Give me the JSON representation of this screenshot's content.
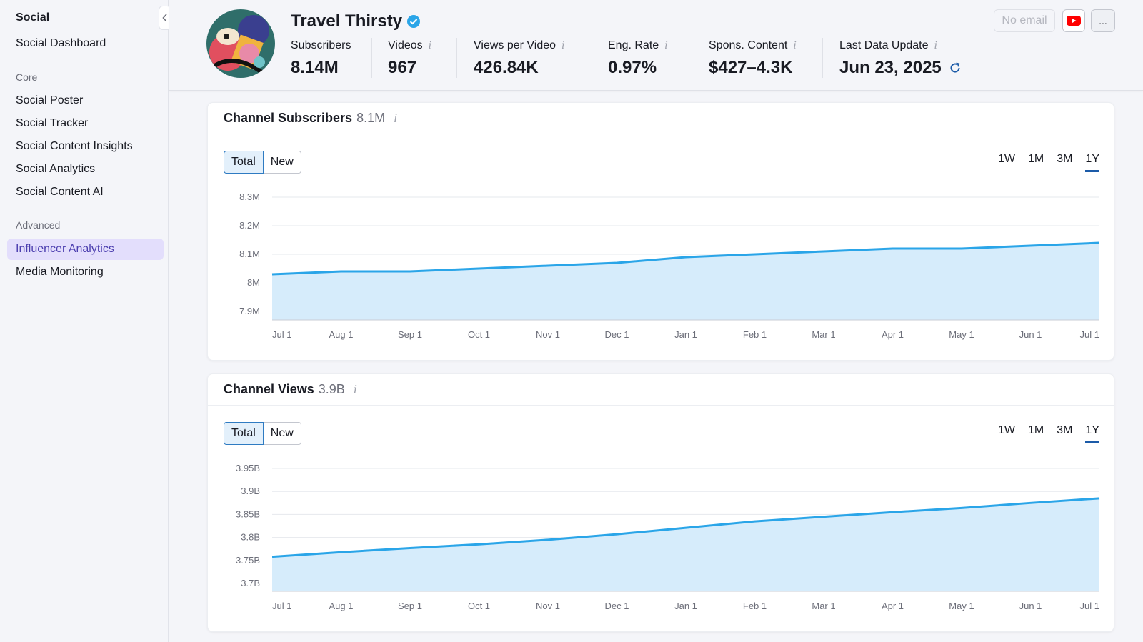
{
  "sidebar": {
    "title": "Social",
    "top_item": "Social Dashboard",
    "core_label": "Core",
    "core_items": [
      "Social Poster",
      "Social Tracker",
      "Social Content Insights",
      "Social Analytics",
      "Social Content AI"
    ],
    "advanced_label": "Advanced",
    "advanced_items": [
      "Influencer Analytics",
      "Media Monitoring"
    ],
    "active_item": "Influencer Analytics"
  },
  "header": {
    "channel_name": "Travel Thirsty",
    "no_email_label": "No email",
    "more_label": "...",
    "stats": [
      {
        "label": "Subscribers",
        "value": "8.14M",
        "info": false
      },
      {
        "label": "Videos",
        "value": "967",
        "info": true
      },
      {
        "label": "Views per Video",
        "value": "426.84K",
        "info": true
      },
      {
        "label": "Eng. Rate",
        "value": "0.97%",
        "info": true
      },
      {
        "label": "Spons. Content",
        "value": "$427–4.3K",
        "info": true
      },
      {
        "label": "Last Data Update",
        "value": "Jun 23, 2025",
        "info": true
      }
    ]
  },
  "colors": {
    "accent": "#2aa5e8",
    "fill": "#d6ecfb",
    "active_sidebar": "#e3defc",
    "youtube": "#ff0000"
  },
  "subscribers_card": {
    "title": "Channel Subscribers",
    "value": "8.1M",
    "seg": [
      "Total",
      "New"
    ],
    "ranges": [
      "1W",
      "1M",
      "3M",
      "1Y"
    ],
    "active_range": "1Y"
  },
  "views_card": {
    "title": "Channel Views",
    "value": "3.9B",
    "seg": [
      "Total",
      "New"
    ],
    "ranges": [
      "1W",
      "1M",
      "3M",
      "1Y"
    ],
    "active_range": "1Y"
  },
  "chart_data": [
    {
      "type": "area",
      "title": "Channel Subscribers",
      "x": [
        "Jul 1",
        "Aug 1",
        "Sep 1",
        "Oct 1",
        "Nov 1",
        "Dec 1",
        "Jan 1",
        "Feb 1",
        "Mar 1",
        "Apr 1",
        "May 1",
        "Jun 1",
        "Jul 1"
      ],
      "values": [
        8.03,
        8.04,
        8.04,
        8.05,
        8.06,
        8.07,
        8.09,
        8.1,
        8.11,
        8.12,
        8.12,
        8.13,
        8.14
      ],
      "yticks": [
        "8.3M",
        "8.2M",
        "8.1M",
        "8M",
        "7.9M"
      ],
      "ytick_values": [
        8.3,
        8.2,
        8.1,
        8.0,
        7.9
      ],
      "ylim": [
        7.87,
        8.3
      ],
      "unit": "M"
    },
    {
      "type": "area",
      "title": "Channel Views",
      "x": [
        "Jul 1",
        "Aug 1",
        "Sep 1",
        "Oct 1",
        "Nov 1",
        "Dec 1",
        "Jan 1",
        "Feb 1",
        "Mar 1",
        "Apr 1",
        "May 1",
        "Jun 1",
        "Jul 1"
      ],
      "values": [
        3.758,
        3.768,
        3.777,
        3.785,
        3.795,
        3.807,
        3.821,
        3.835,
        3.845,
        3.855,
        3.864,
        3.875,
        3.885
      ],
      "yticks": [
        "3.95B",
        "3.9B",
        "3.85B",
        "3.8B",
        "3.75B",
        "3.7B"
      ],
      "ytick_values": [
        3.95,
        3.9,
        3.85,
        3.8,
        3.75,
        3.7
      ],
      "ylim": [
        3.683,
        3.95
      ],
      "unit": "B"
    }
  ]
}
